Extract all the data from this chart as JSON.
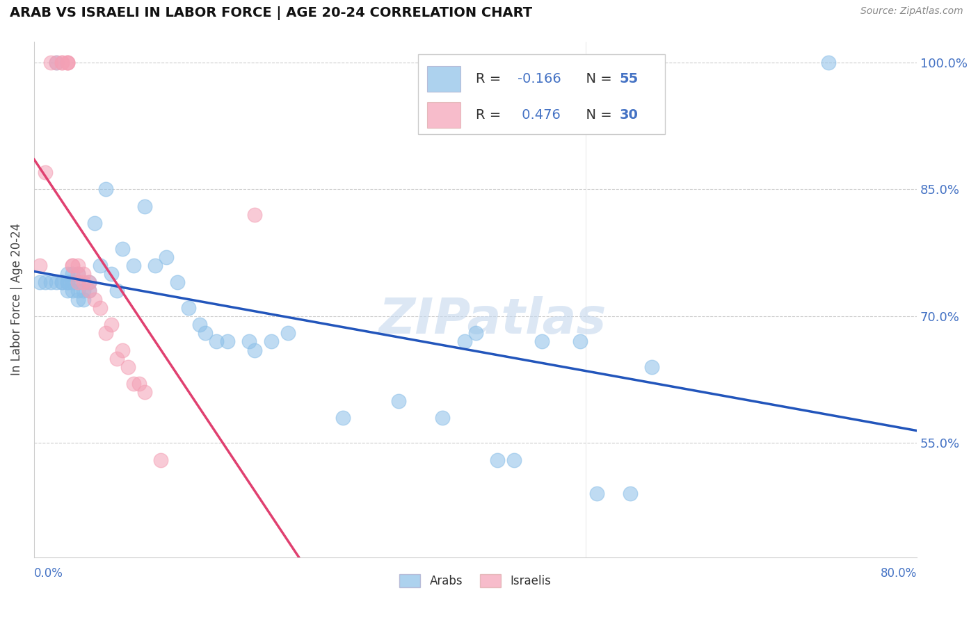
{
  "title": "ARAB VS ISRAELI IN LABOR FORCE | AGE 20-24 CORRELATION CHART",
  "source": "Source: ZipAtlas.com",
  "ylabel": "In Labor Force | Age 20-24",
  "watermark": "ZIPatlas",
  "legend_arab": "Arabs",
  "legend_israeli": "Israelis",
  "arab_R": -0.166,
  "arab_N": 55,
  "israeli_R": 0.476,
  "israeli_N": 30,
  "arab_color": "#8BBFE8",
  "israeli_color": "#F4A0B5",
  "arab_line_color": "#2255BB",
  "israeli_line_color": "#E04070",
  "xlim": [
    0.0,
    0.8
  ],
  "ylim": [
    0.415,
    1.025
  ],
  "yticks": [
    0.55,
    0.7,
    0.85,
    1.0
  ],
  "ytick_labels": [
    "55.0%",
    "70.0%",
    "85.0%",
    "100.0%"
  ],
  "arab_x": [
    0.005,
    0.01,
    0.015,
    0.02,
    0.02,
    0.025,
    0.025,
    0.03,
    0.03,
    0.03,
    0.03,
    0.035,
    0.035,
    0.035,
    0.04,
    0.04,
    0.04,
    0.04,
    0.045,
    0.045,
    0.05,
    0.05,
    0.055,
    0.06,
    0.065,
    0.07,
    0.075,
    0.08,
    0.09,
    0.1,
    0.11,
    0.12,
    0.13,
    0.14,
    0.15,
    0.155,
    0.165,
    0.175,
    0.195,
    0.2,
    0.215,
    0.23,
    0.28,
    0.33,
    0.37,
    0.39,
    0.4,
    0.42,
    0.435,
    0.46,
    0.495,
    0.51,
    0.54,
    0.56,
    0.72
  ],
  "arab_y": [
    0.74,
    0.74,
    0.74,
    0.74,
    1.0,
    0.74,
    0.74,
    0.73,
    0.74,
    0.74,
    0.75,
    0.73,
    0.74,
    0.75,
    0.72,
    0.73,
    0.74,
    0.75,
    0.72,
    0.73,
    0.73,
    0.74,
    0.81,
    0.76,
    0.85,
    0.75,
    0.73,
    0.78,
    0.76,
    0.83,
    0.76,
    0.77,
    0.74,
    0.71,
    0.69,
    0.68,
    0.67,
    0.67,
    0.67,
    0.66,
    0.67,
    0.68,
    0.58,
    0.6,
    0.58,
    0.67,
    0.68,
    0.53,
    0.53,
    0.67,
    0.67,
    0.49,
    0.49,
    0.64,
    1.0
  ],
  "israeli_x": [
    0.005,
    0.01,
    0.015,
    0.02,
    0.025,
    0.025,
    0.03,
    0.03,
    0.03,
    0.035,
    0.035,
    0.04,
    0.04,
    0.04,
    0.045,
    0.045,
    0.05,
    0.05,
    0.055,
    0.06,
    0.065,
    0.07,
    0.075,
    0.08,
    0.085,
    0.09,
    0.095,
    0.1,
    0.115,
    0.2
  ],
  "israeli_y": [
    0.76,
    0.87,
    1.0,
    1.0,
    1.0,
    1.0,
    1.0,
    1.0,
    1.0,
    0.76,
    0.76,
    0.75,
    0.76,
    0.74,
    0.74,
    0.75,
    0.73,
    0.74,
    0.72,
    0.71,
    0.68,
    0.69,
    0.65,
    0.66,
    0.64,
    0.62,
    0.62,
    0.61,
    0.53,
    0.82
  ]
}
